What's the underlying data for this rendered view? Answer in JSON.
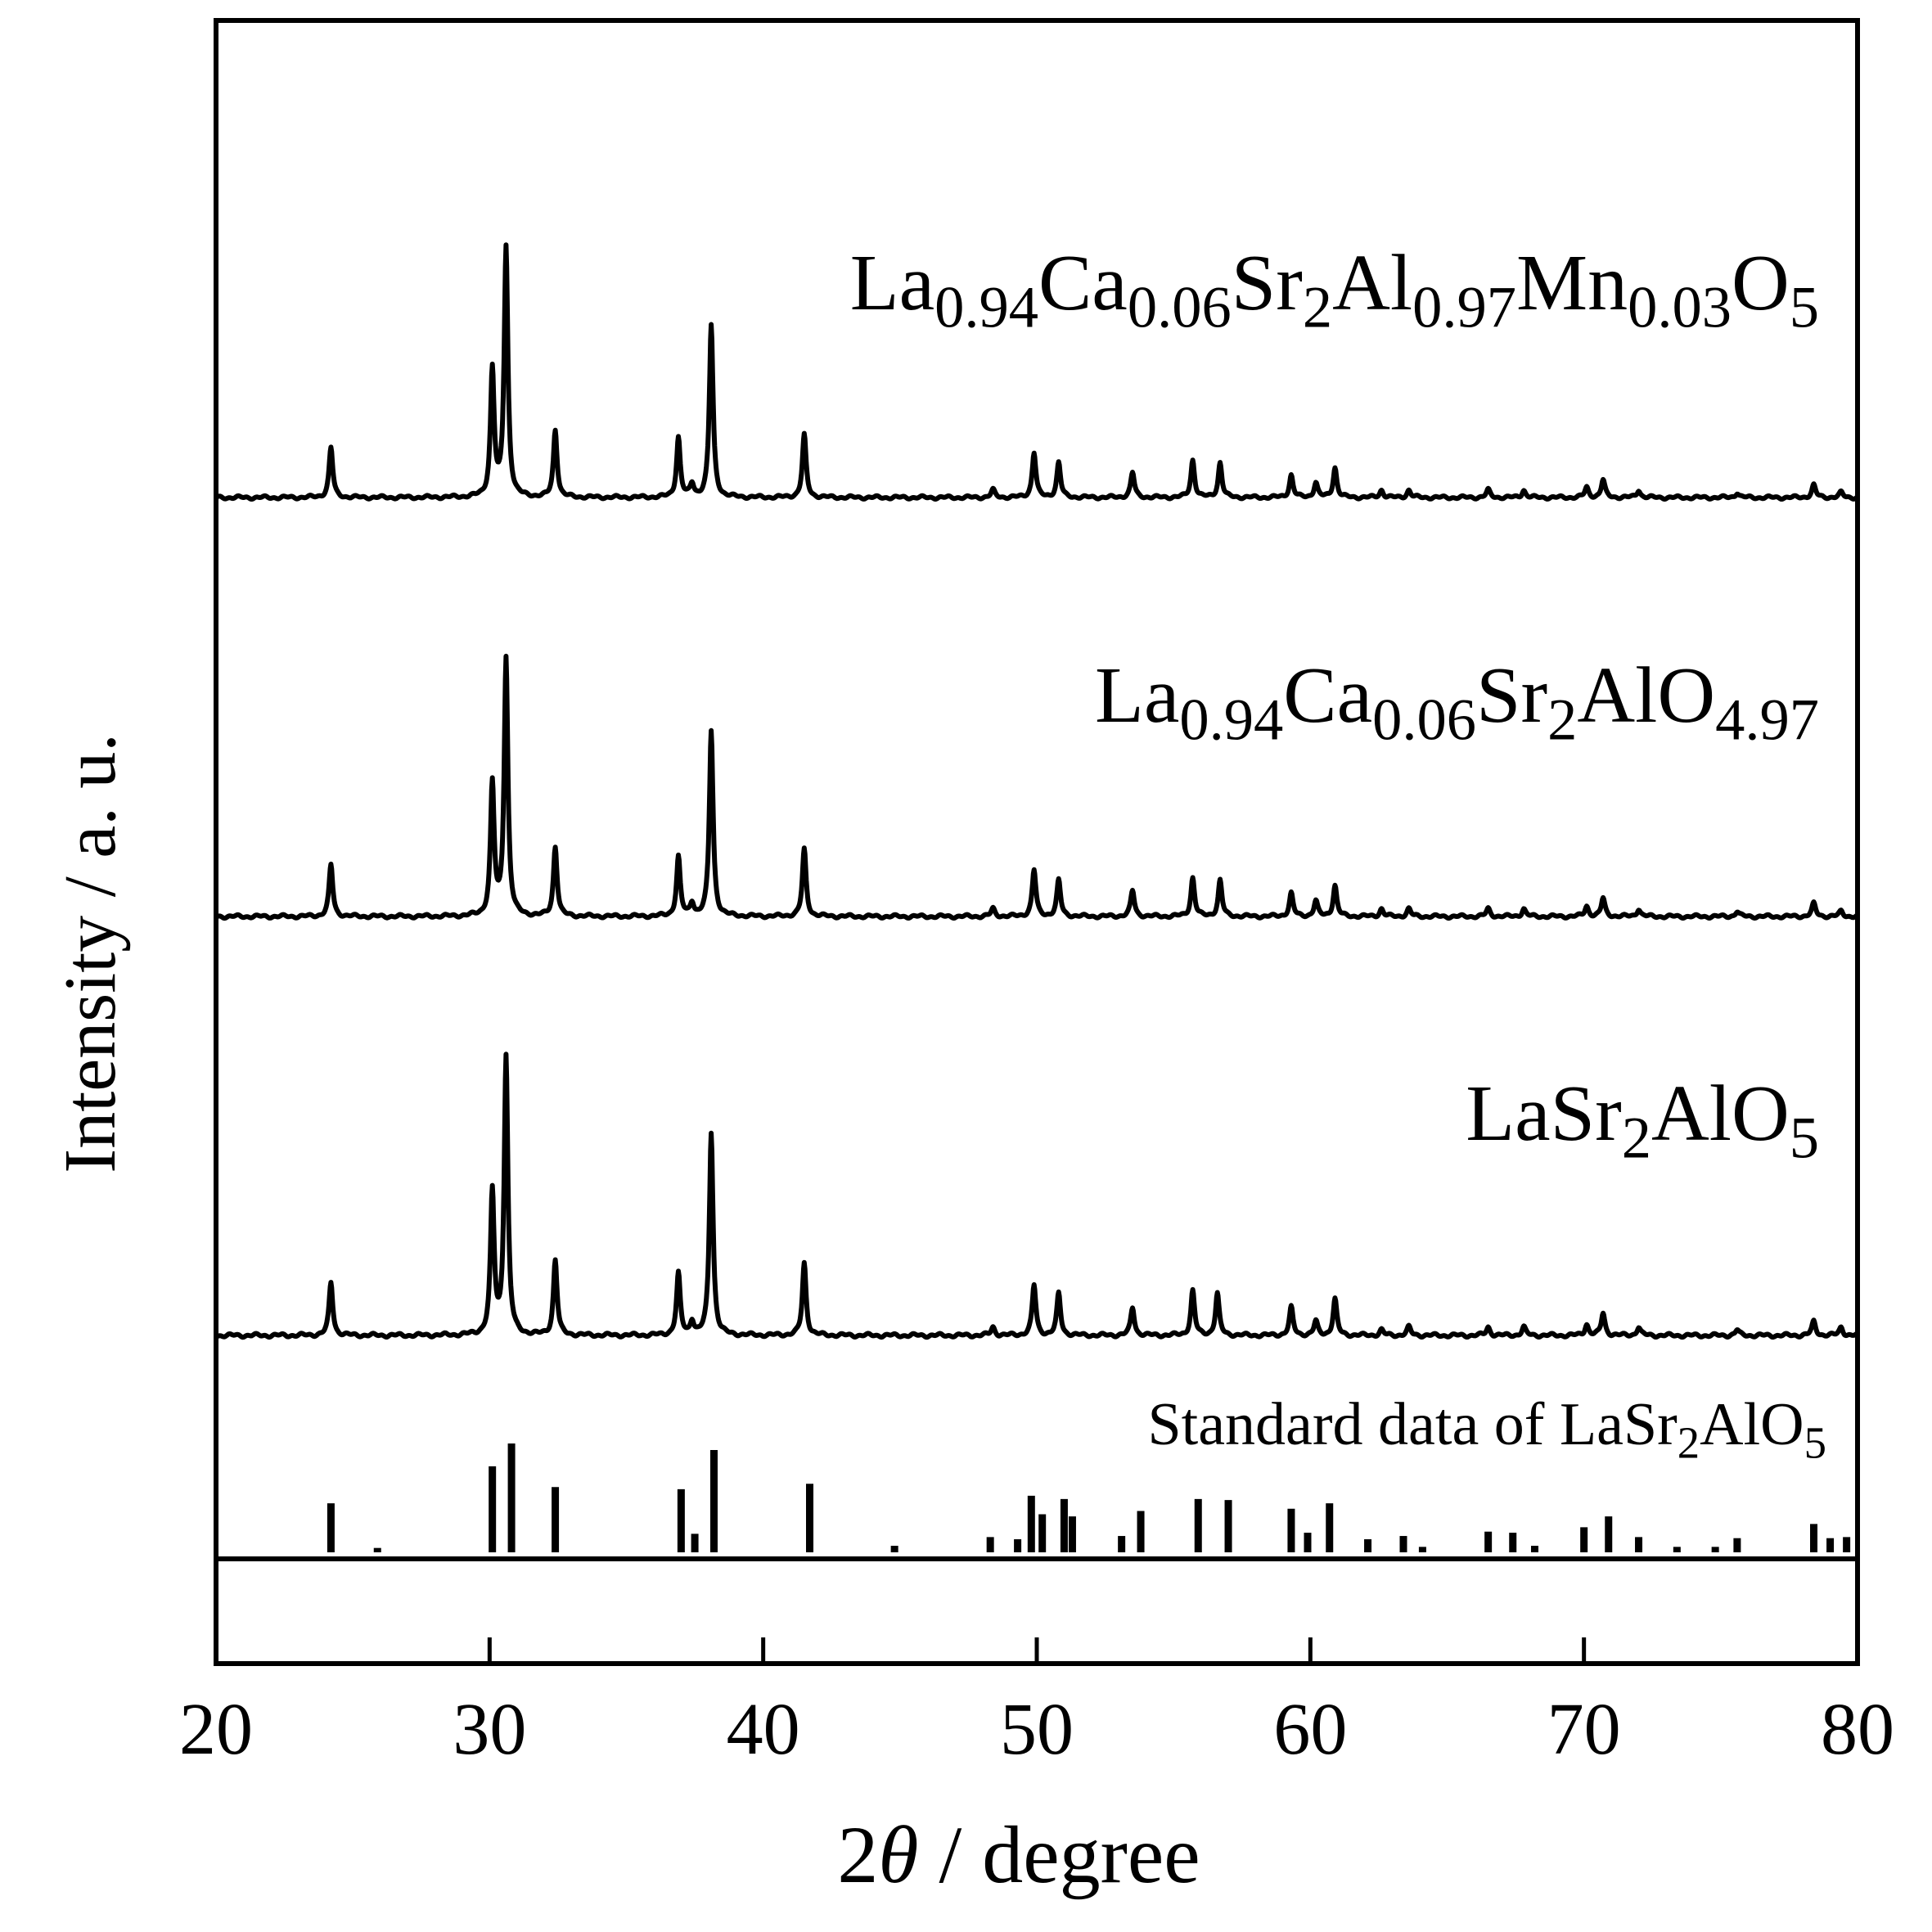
{
  "chart_data": {
    "type": "line",
    "xlabel_prefix": "2",
    "xlabel_theta": "θ",
    "xlabel_suffix": " / degree",
    "ylabel": "Intensity / a. u.",
    "xlim": [
      20,
      80
    ],
    "xticks": [
      20,
      30,
      40,
      50,
      60,
      70,
      80
    ],
    "xtick_labels": [
      "20",
      "30",
      "40",
      "50",
      "60",
      "70",
      "80"
    ],
    "grid": false,
    "series": [
      {
        "label_parts": [
          {
            "t": "La",
            "sub": false
          },
          {
            "t": "0.94",
            "sub": true
          },
          {
            "t": "Ca",
            "sub": false
          },
          {
            "t": "0.06",
            "sub": true
          },
          {
            "t": "Sr",
            "sub": false
          },
          {
            "t": "2",
            "sub": true
          },
          {
            "t": "Al",
            "sub": false
          },
          {
            "t": "0.97",
            "sub": true
          },
          {
            "t": "Mn",
            "sub": false
          },
          {
            "t": "0.03",
            "sub": true
          },
          {
            "t": "O",
            "sub": false
          },
          {
            "t": "5",
            "sub": true
          }
        ],
        "peaks": [
          [
            24.2,
            0.2
          ],
          [
            30.1,
            0.51
          ],
          [
            30.6,
            1.0
          ],
          [
            32.4,
            0.27
          ],
          [
            36.9,
            0.24
          ],
          [
            37.4,
            0.05
          ],
          [
            38.1,
            0.69
          ],
          [
            41.5,
            0.25
          ],
          [
            48.4,
            0.03
          ],
          [
            49.9,
            0.18
          ],
          [
            50.8,
            0.14
          ],
          [
            53.5,
            0.1
          ],
          [
            55.7,
            0.15
          ],
          [
            56.7,
            0.14
          ],
          [
            59.3,
            0.09
          ],
          [
            60.2,
            0.06
          ],
          [
            60.9,
            0.12
          ],
          [
            62.6,
            0.03
          ],
          [
            63.6,
            0.03
          ],
          [
            66.5,
            0.03
          ],
          [
            67.8,
            0.03
          ],
          [
            70.1,
            0.04
          ],
          [
            70.7,
            0.07
          ],
          [
            72.0,
            0.03
          ],
          [
            75.6,
            0.02
          ],
          [
            78.4,
            0.05
          ],
          [
            79.4,
            0.02
          ]
        ]
      },
      {
        "label_parts": [
          {
            "t": "La",
            "sub": false
          },
          {
            "t": "0.94",
            "sub": true
          },
          {
            "t": "Ca",
            "sub": false
          },
          {
            "t": "0.06",
            "sub": true
          },
          {
            "t": "Sr",
            "sub": false
          },
          {
            "t": "2",
            "sub": true
          },
          {
            "t": "AlO",
            "sub": false
          },
          {
            "t": "4.97",
            "sub": true
          }
        ],
        "peaks": [
          [
            24.2,
            0.2
          ],
          [
            30.1,
            0.51
          ],
          [
            30.6,
            1.0
          ],
          [
            32.4,
            0.27
          ],
          [
            36.9,
            0.23
          ],
          [
            37.4,
            0.05
          ],
          [
            38.1,
            0.72
          ],
          [
            41.5,
            0.26
          ],
          [
            48.4,
            0.03
          ],
          [
            49.9,
            0.18
          ],
          [
            50.8,
            0.14
          ],
          [
            53.5,
            0.1
          ],
          [
            55.7,
            0.15
          ],
          [
            56.7,
            0.14
          ],
          [
            59.3,
            0.09
          ],
          [
            60.2,
            0.06
          ],
          [
            60.9,
            0.12
          ],
          [
            62.6,
            0.03
          ],
          [
            63.6,
            0.03
          ],
          [
            66.5,
            0.03
          ],
          [
            67.8,
            0.03
          ],
          [
            70.1,
            0.04
          ],
          [
            70.7,
            0.07
          ],
          [
            72.0,
            0.03
          ],
          [
            75.6,
            0.02
          ],
          [
            78.4,
            0.05
          ],
          [
            79.4,
            0.02
          ]
        ]
      },
      {
        "label_parts": [
          {
            "t": "LaSr",
            "sub": false
          },
          {
            "t": "2",
            "sub": true
          },
          {
            "t": "AlO",
            "sub": false
          },
          {
            "t": "5",
            "sub": true
          }
        ],
        "peaks": [
          [
            24.2,
            0.19
          ],
          [
            30.1,
            0.51
          ],
          [
            30.6,
            1.0
          ],
          [
            32.4,
            0.27
          ],
          [
            36.9,
            0.22
          ],
          [
            37.4,
            0.05
          ],
          [
            38.1,
            0.73
          ],
          [
            41.5,
            0.26
          ],
          [
            48.4,
            0.03
          ],
          [
            49.9,
            0.18
          ],
          [
            50.8,
            0.15
          ],
          [
            53.5,
            0.1
          ],
          [
            55.7,
            0.16
          ],
          [
            56.6,
            0.15
          ],
          [
            59.3,
            0.1
          ],
          [
            60.2,
            0.05
          ],
          [
            60.9,
            0.13
          ],
          [
            62.6,
            0.02
          ],
          [
            63.6,
            0.03
          ],
          [
            66.5,
            0.03
          ],
          [
            67.8,
            0.03
          ],
          [
            70.1,
            0.04
          ],
          [
            70.7,
            0.08
          ],
          [
            72.0,
            0.03
          ],
          [
            75.6,
            0.02
          ],
          [
            78.4,
            0.05
          ],
          [
            79.4,
            0.03
          ]
        ]
      }
    ],
    "reference": {
      "label_parts": [
        {
          "t": "Standard data of LaSr",
          "sub": false
        },
        {
          "t": "2",
          "sub": true
        },
        {
          "t": "AlO",
          "sub": false
        },
        {
          "t": "5",
          "sub": true
        }
      ],
      "lines": [
        [
          24.2,
          0.45
        ],
        [
          25.9,
          0.04
        ],
        [
          30.1,
          0.79
        ],
        [
          30.8,
          1.0
        ],
        [
          32.4,
          0.6
        ],
        [
          37.0,
          0.58
        ],
        [
          37.5,
          0.17
        ],
        [
          38.2,
          0.94
        ],
        [
          41.7,
          0.63
        ],
        [
          44.8,
          0.06
        ],
        [
          48.3,
          0.14
        ],
        [
          49.3,
          0.12
        ],
        [
          49.8,
          0.52
        ],
        [
          50.2,
          0.35
        ],
        [
          51.0,
          0.49
        ],
        [
          51.3,
          0.33
        ],
        [
          53.1,
          0.15
        ],
        [
          53.8,
          0.38
        ],
        [
          55.9,
          0.49
        ],
        [
          57.0,
          0.48
        ],
        [
          59.3,
          0.4
        ],
        [
          59.9,
          0.18
        ],
        [
          60.7,
          0.45
        ],
        [
          62.1,
          0.12
        ],
        [
          63.4,
          0.15
        ],
        [
          64.1,
          0.05
        ],
        [
          66.5,
          0.19
        ],
        [
          67.4,
          0.18
        ],
        [
          68.2,
          0.06
        ],
        [
          70.0,
          0.23
        ],
        [
          70.9,
          0.33
        ],
        [
          72.0,
          0.14
        ],
        [
          73.4,
          0.05
        ],
        [
          74.8,
          0.05
        ],
        [
          75.6,
          0.13
        ],
        [
          78.4,
          0.26
        ],
        [
          79.0,
          0.13
        ],
        [
          79.6,
          0.14
        ]
      ]
    }
  }
}
